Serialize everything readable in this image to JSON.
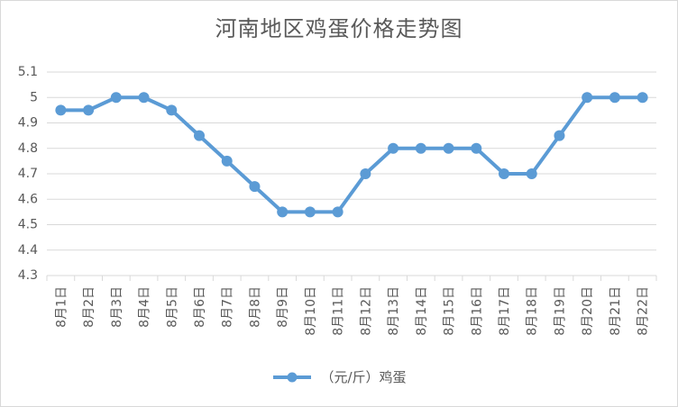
{
  "chart_data": {
    "type": "line",
    "title": "河南地区鸡蛋价格走势图",
    "categories": [
      "8月1日",
      "8月2日",
      "8月3日",
      "8月4日",
      "8月5日",
      "8月6日",
      "8月7日",
      "8月8日",
      "8月9日",
      "8月10日",
      "8月11日",
      "8月12日",
      "8月13日",
      "8月14日",
      "8月15日",
      "8月16日",
      "8月17日",
      "8月18日",
      "8月19日",
      "8月20日",
      "8月21日",
      "8月22日"
    ],
    "series": [
      {
        "name": "（元/斤）鸡蛋",
        "values": [
          4.95,
          4.95,
          5.0,
          5.0,
          4.95,
          4.85,
          4.75,
          4.65,
          4.55,
          4.55,
          4.55,
          4.7,
          4.8,
          4.8,
          4.8,
          4.8,
          4.7,
          4.7,
          4.85,
          5.0,
          5.0,
          5.0
        ]
      }
    ],
    "yticks": [
      "4.3",
      "4.4",
      "4.5",
      "4.6",
      "4.7",
      "4.8",
      "4.9",
      "5",
      "5.1"
    ],
    "ylim": [
      4.3,
      5.1
    ],
    "grid": true,
    "legend_position": "bottom",
    "series_color": "#5b9bd5"
  }
}
